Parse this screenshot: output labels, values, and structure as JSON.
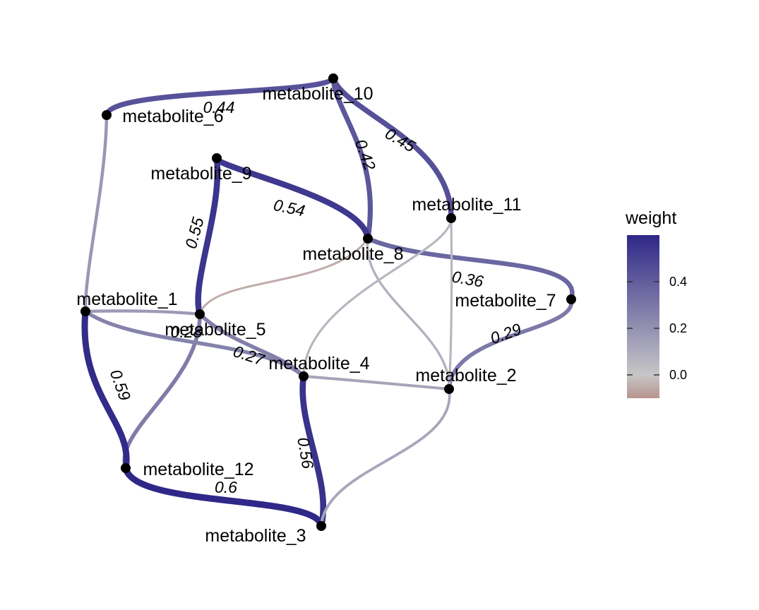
{
  "legend": {
    "title": "weight",
    "ticks": [
      "0.4",
      "0.2",
      "0.0"
    ],
    "tick_values": [
      0.4,
      0.2,
      0.0
    ],
    "min": -0.1,
    "max": 0.6,
    "color_low": "#b8948f",
    "color_mid": "#c6c6c6",
    "color_high": "#2f2888"
  },
  "nodes": [
    {
      "id": "metabolite_1",
      "label": "metabolite_1"
    },
    {
      "id": "metabolite_2",
      "label": "metabolite_2"
    },
    {
      "id": "metabolite_3",
      "label": "metabolite_3"
    },
    {
      "id": "metabolite_4",
      "label": "metabolite_4"
    },
    {
      "id": "metabolite_5",
      "label": "metabolite_5"
    },
    {
      "id": "metabolite_6",
      "label": "metabolite_6"
    },
    {
      "id": "metabolite_7",
      "label": "metabolite_7"
    },
    {
      "id": "metabolite_8",
      "label": "metabolite_8"
    },
    {
      "id": "metabolite_9",
      "label": "metabolite_9"
    },
    {
      "id": "metabolite_10",
      "label": "metabolite_10"
    },
    {
      "id": "metabolite_11",
      "label": "metabolite_11"
    },
    {
      "id": "metabolite_12",
      "label": "metabolite_12"
    }
  ],
  "edges": [
    {
      "from": "metabolite_6",
      "to": "metabolite_10",
      "weight": 0.44,
      "label": "0.44"
    },
    {
      "from": "metabolite_10",
      "to": "metabolite_11",
      "weight": 0.45,
      "label": "0.45"
    },
    {
      "from": "metabolite_10",
      "to": "metabolite_8",
      "weight": 0.42,
      "label": "0.42"
    },
    {
      "from": "metabolite_9",
      "to": "metabolite_8",
      "weight": 0.54,
      "label": "0.54"
    },
    {
      "from": "metabolite_9",
      "to": "metabolite_5",
      "weight": 0.55,
      "label": "0.55"
    },
    {
      "from": "metabolite_8",
      "to": "metabolite_7",
      "weight": 0.36,
      "label": "0.36"
    },
    {
      "from": "metabolite_7",
      "to": "metabolite_2",
      "weight": 0.29,
      "label": "0.29"
    },
    {
      "from": "metabolite_5",
      "to": "metabolite_4",
      "weight": 0.27,
      "label": "0.27"
    },
    {
      "from": "metabolite_5",
      "to": "metabolite_12",
      "weight": 0.28,
      "label": "0.28"
    },
    {
      "from": "metabolite_1",
      "to": "metabolite_12",
      "weight": 0.59,
      "label": "0.59"
    },
    {
      "from": "metabolite_12",
      "to": "metabolite_3",
      "weight": 0.6,
      "label": "0.6"
    },
    {
      "from": "metabolite_4",
      "to": "metabolite_3",
      "weight": 0.56,
      "label": "0.56"
    },
    {
      "from": "metabolite_6",
      "to": "metabolite_1",
      "weight": 0.18
    },
    {
      "from": "metabolite_1",
      "to": "metabolite_5",
      "weight": 0.17
    },
    {
      "from": "metabolite_1",
      "to": "metabolite_4",
      "weight": 0.26
    },
    {
      "from": "metabolite_8",
      "to": "metabolite_5",
      "weight": -0.05
    },
    {
      "from": "metabolite_8",
      "to": "metabolite_2",
      "weight": 0.08
    },
    {
      "from": "metabolite_11",
      "to": "metabolite_4",
      "weight": 0.06
    },
    {
      "from": "metabolite_11",
      "to": "metabolite_2",
      "weight": 0.06
    },
    {
      "from": "metabolite_4",
      "to": "metabolite_2",
      "weight": 0.13
    },
    {
      "from": "metabolite_2",
      "to": "metabolite_3",
      "weight": 0.12
    }
  ]
}
